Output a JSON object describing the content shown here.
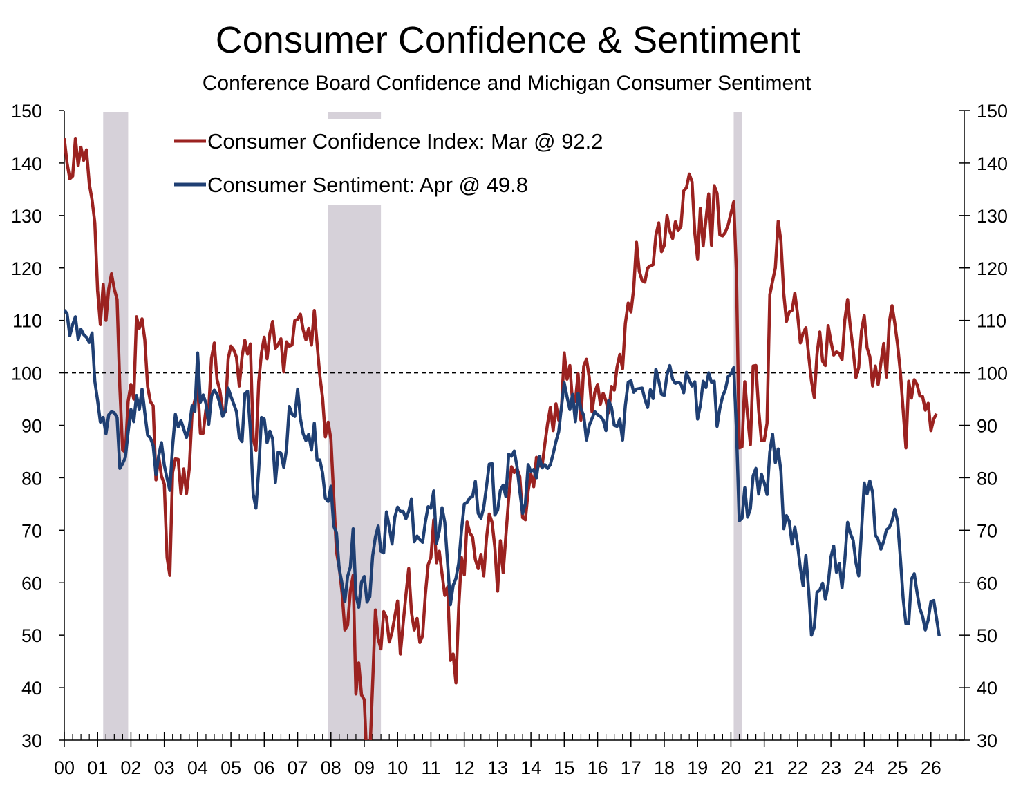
{
  "chart_data": {
    "type": "line",
    "title": "Consumer Confidence & Sentiment",
    "subtitle": "Conference Board Confidence and Michigan Consumer Sentiment",
    "x_start": "2000-01",
    "frequency": "monthly",
    "xlim": [
      "2000-01",
      "2026-12"
    ],
    "ylim": [
      30,
      150
    ],
    "y_ticks": [
      30,
      40,
      50,
      60,
      70,
      80,
      90,
      100,
      110,
      120,
      130,
      140,
      150
    ],
    "x_tick_labels": [
      "00",
      "01",
      "02",
      "03",
      "04",
      "05",
      "06",
      "07",
      "08",
      "09",
      "10",
      "11",
      "12",
      "13",
      "14",
      "15",
      "16",
      "17",
      "18",
      "19",
      "20",
      "21",
      "22",
      "23",
      "24",
      "25",
      "26"
    ],
    "secondary_y_axis": true,
    "reference_line": {
      "value": 100,
      "style": "dashed"
    },
    "grid": false,
    "legend_placement": "top-left",
    "recessions": [
      {
        "start": "2001-03",
        "end": "2001-11"
      },
      {
        "start": "2007-12",
        "end": "2009-06"
      },
      {
        "start": "2020-02",
        "end": "2020-04"
      }
    ],
    "recession_color": "#d6d1d9",
    "series": [
      {
        "name": "Consumer Confidence Index: Mar @ 92.2",
        "color": "#9b2220",
        "values": [
          144.7,
          140,
          137,
          137.5,
          144.7,
          139.5,
          143,
          140.5,
          142.5,
          136,
          133,
          128.6,
          115.7,
          109.2,
          116.9,
          110,
          116,
          118.9,
          116,
          114,
          97,
          85.3,
          84.9,
          94.6,
          97.8,
          95,
          110.7,
          108.5,
          110.3,
          106.3,
          97.4,
          94.5,
          93.7,
          79.6,
          84.1,
          80.3,
          78.8,
          64.8,
          61.4,
          81,
          83.6,
          83.5,
          77,
          81.7,
          77,
          81.7,
          92.5,
          94.8,
          97.7,
          88.5,
          88.5,
          93,
          93.1,
          102.8,
          105.7,
          98.7,
          96.7,
          92.9,
          92.6,
          102.7,
          105.1,
          104.4,
          103,
          97.5,
          103.1,
          106.2,
          103.6,
          105.5,
          87.5,
          85.2,
          98.3,
          103.8,
          106.8,
          102.7,
          107.5,
          109.8,
          104.7,
          105.4,
          106.5,
          100.2,
          105.9,
          105.1,
          105.3,
          110,
          110.2,
          111.2,
          108.2,
          106.3,
          108.5,
          105.3,
          111.9,
          105.6,
          99.5,
          95.2,
          87.8,
          90.6,
          87.3,
          76.4,
          65.9,
          62.8,
          58.1,
          51,
          51.9,
          58.5,
          61.4,
          38.8,
          44.7,
          38.6,
          37.7,
          25.3,
          26.9,
          40.8,
          54.8,
          49.3,
          47.4,
          54.5,
          53.4,
          48.7,
          50.6,
          53.6,
          56.5,
          46.4,
          52.3,
          57.7,
          62.7,
          54.3,
          51,
          53.2,
          48.6,
          49.9,
          57.8,
          63.4,
          64.8,
          72,
          63.8,
          66,
          61.7,
          57.6,
          59.2,
          45.2,
          46.4,
          40.9,
          55.2,
          64.8,
          61.5,
          71.6,
          69.5,
          68.7,
          64.4,
          62.7,
          65.4,
          61.3,
          68.4,
          73.1,
          71.5,
          66.7,
          58.4,
          68,
          61.9,
          69,
          76.2,
          82.1,
          81,
          81.8,
          80.2,
          72.4,
          72,
          77.5,
          80.7,
          78.3,
          83.9,
          82.3,
          82.2,
          86.4,
          90.3,
          93.4,
          89,
          94.1,
          91,
          93.1,
          103.8,
          98.8,
          101.4,
          94.3,
          94.6,
          99.8,
          91,
          101.3,
          102.6,
          99.1,
          92.6,
          96.3,
          97.8,
          94,
          96.1,
          94.7,
          92.4,
          97.4,
          96.7,
          101.1,
          103.5,
          100.8,
          109.4,
          113.3,
          111.6,
          116.1,
          124.9,
          119.4,
          117.6,
          117.3,
          120,
          120.4,
          120.6,
          126.2,
          128.6,
          123.1,
          124.3,
          130,
          127,
          125.6,
          128.8,
          127.1,
          127.9,
          134.7,
          135.3,
          137.9,
          136.4,
          126.6,
          121.7,
          131.4,
          124.2,
          129.2,
          134.1,
          124.3,
          135.7,
          134.2,
          126.3,
          126.1,
          126.8,
          128.2,
          130.4,
          132.6,
          118.8,
          85.7,
          85.9,
          98.3,
          91.7,
          86.3,
          101.3,
          101.4,
          92.9,
          87.1,
          87.1,
          90.4,
          114.9,
          117.5,
          120,
          128.9,
          125.1,
          115.2,
          109.8,
          111.6,
          111.9,
          115.2,
          111.1,
          105.7,
          107.6,
          108.6,
          103.2,
          98.4,
          95.3,
          103.6,
          107.8,
          102.2,
          101.4,
          109,
          106,
          103.4,
          104,
          103.7,
          102.5,
          110.1,
          114,
          108.7,
          104.3,
          99.1,
          101,
          108,
          110.9,
          104.8,
          103.1,
          97.5,
          101.3,
          97.8,
          101.9,
          105.6,
          99.2,
          109.6,
          112.8,
          109.5,
          105.3,
          100.1,
          92.9,
          85.7,
          98.4,
          95.2,
          98.7,
          97.8,
          95.6,
          95.5,
          92.9,
          94.2,
          89,
          91.2,
          92.2
        ]
      },
      {
        "name": "Consumer Sentiment: Apr @ 49.8",
        "color": "#1f3f73",
        "values": [
          112,
          111.3,
          107.1,
          109.2,
          110.7,
          106.4,
          108.3,
          107.3,
          106.8,
          105.8,
          107.6,
          98.4,
          94.7,
          90.6,
          91.5,
          88.4,
          92,
          92.6,
          92.4,
          91.5,
          81.8,
          82.7,
          83.9,
          88.8,
          93,
          90.7,
          95.7,
          93,
          96.9,
          92.4,
          88.1,
          87.6,
          86.1,
          80.6,
          84.2,
          86.7,
          82.4,
          79.9,
          77.6,
          86,
          92.1,
          89.7,
          90.9,
          89.3,
          87.7,
          89.6,
          93.7,
          92.6,
          103.8,
          94.4,
          95.8,
          94.2,
          90.2,
          95.6,
          96.7,
          95.9,
          94.2,
          91.7,
          92.8,
          97.1,
          95.5,
          94.1,
          92.6,
          87.7,
          86.9,
          96,
          96.5,
          89.1,
          76.9,
          74.2,
          81.6,
          91.5,
          91.2,
          86.7,
          88.9,
          87.4,
          79.1,
          84.9,
          84.7,
          82,
          85.4,
          93.6,
          92.1,
          91.7,
          96.9,
          91.3,
          88.4,
          87.1,
          88.3,
          85.3,
          90.4,
          83.4,
          83.4,
          80.9,
          76.1,
          75.5,
          78.4,
          70.8,
          69.5,
          62.6,
          59.8,
          56.4,
          61.2,
          63,
          70.3,
          57.6,
          55.3,
          60.1,
          61.2,
          56.3,
          57.3,
          65.1,
          68.7,
          70.8,
          66,
          65.7,
          73.5,
          70.6,
          67.4,
          72.5,
          74.4,
          73.6,
          73.6,
          72.2,
          73.6,
          76,
          67.8,
          68.9,
          68.2,
          67.7,
          71.6,
          74.5,
          74.2,
          77.5,
          67.5,
          69.8,
          74.3,
          71.5,
          63.7,
          55.8,
          59.5,
          60.8,
          63.7,
          69.9,
          75,
          75.3,
          76.2,
          76.4,
          79.3,
          73.2,
          72.3,
          74.3,
          78.3,
          82.6,
          82.7,
          72.9,
          73.8,
          77.6,
          78.6,
          76.4,
          84.5,
          84.1,
          85.1,
          82.1,
          77.5,
          73.2,
          75.1,
          82.5,
          81.2,
          81.6,
          80,
          84.1,
          81.9,
          82.5,
          81.8,
          82.5,
          84.6,
          86.9,
          88.8,
          93.6,
          98.1,
          95.4,
          93,
          95.9,
          90.7,
          96.1,
          93.1,
          91.9,
          87.2,
          90,
          91.3,
          92.6,
          92,
          91.7,
          91,
          89,
          94.7,
          93.5,
          90,
          89.8,
          91.2,
          87.2,
          93.8,
          98.2,
          98.5,
          96.3,
          96.9,
          97,
          97.1,
          95,
          93.4,
          96.8,
          95.1,
          100.7,
          98.5,
          95.9,
          95.7,
          99.7,
          101.4,
          98.8,
          98,
          98.2,
          97.9,
          96.2,
          100.1,
          98.6,
          97.5,
          98.3,
          91.2,
          93.8,
          98.4,
          97.2,
          100,
          98.2,
          98.4,
          89.8,
          93.2,
          95.5,
          96.8,
          99.3,
          99.8,
          101,
          89.1,
          71.8,
          72.3,
          78.1,
          72.5,
          74.1,
          80.4,
          81.8,
          76.9,
          80.7,
          79,
          76.8,
          84.9,
          88.3,
          82.9,
          85.5,
          81.2,
          70.3,
          72.8,
          71.7,
          67.4,
          70.6,
          67.2,
          62.8,
          59.4,
          65.2,
          58.4,
          50,
          51.5,
          58.2,
          58.6,
          59.9,
          56.8,
          59.7,
          64.9,
          67,
          62,
          63.7,
          59,
          64.4,
          71.5,
          69.4,
          68.1,
          63.8,
          61.3,
          69.7,
          79,
          76.9,
          79.4,
          77.2,
          69.1,
          68.2,
          66.4,
          67.9,
          70.1,
          70.5,
          71.8,
          74,
          71.7,
          64.7,
          57,
          52.2,
          52.2,
          60.7,
          61.7,
          58.2,
          55.1,
          53.6,
          51,
          52.9,
          56.4,
          56.6,
          53.3,
          49.8
        ]
      }
    ]
  }
}
